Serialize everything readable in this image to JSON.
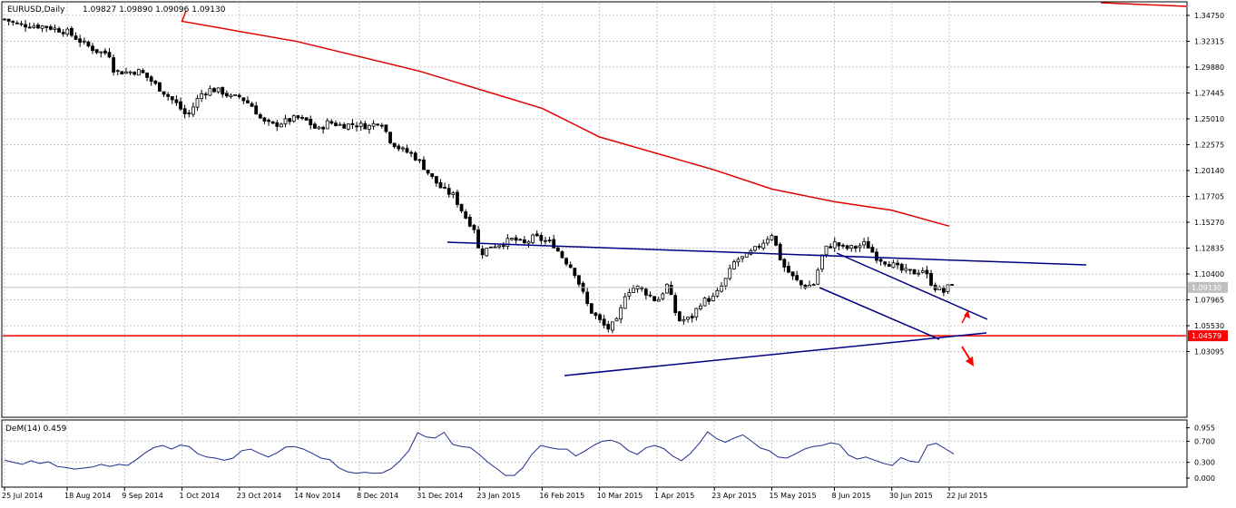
{
  "header": {
    "symbol": "EURUSD,Daily",
    "ohlc": "1.09827 1.09890 1.09096 1.09130"
  },
  "colors": {
    "background": "#ffffff",
    "grid": "#c8c8c8",
    "candle": "#000000",
    "ma": "#e00000",
    "trendline": "#000080",
    "support": "#ff0000",
    "arrow": "#ff0000",
    "dem": "#1c2c8c"
  },
  "price_axis": {
    "ticks": [
      "1.34750",
      "1.32315",
      "1.29880",
      "1.27445",
      "1.25010",
      "1.22575",
      "1.20140",
      "1.17705",
      "1.15270",
      "1.12835",
      "1.10400",
      "1.07965",
      "1.05530",
      "1.03095"
    ],
    "current_price": "1.09130",
    "support_label": "1.04579"
  },
  "time_axis": {
    "labels": [
      "25 Jul 2014",
      "18 Aug 2014",
      "9 Sep 2014",
      "1 Oct 2014",
      "23 Oct 2014",
      "14 Nov 2014",
      "8 Dec 2014",
      "31 Dec 2014",
      "23 Jan 2015",
      "16 Feb 2015",
      "10 Mar 2015",
      "1 Apr 2015",
      "23 Apr 2015",
      "15 May 2015",
      "8 Jun 2015",
      "30 Jun 2015",
      "22 Jul 2015"
    ]
  },
  "indicator": {
    "title": "DeM(14) 0.459",
    "ticks": [
      "0.955",
      "0.700",
      "0.300",
      "0.000"
    ]
  },
  "chart_data": {
    "type": "candlestick",
    "title": "EURUSD,Daily",
    "price_range": [
      1.01,
      1.35
    ],
    "close_path": [
      [
        "25 Jul 2014",
        1.344
      ],
      [
        "30 Jul 2014",
        1.339
      ],
      [
        "5 Aug 2014",
        1.338
      ],
      [
        "10 Aug 2014",
        1.337
      ],
      [
        "18 Aug 2014",
        1.332
      ],
      [
        "25 Aug 2014",
        1.32
      ],
      [
        "30 Aug 2014",
        1.313
      ],
      [
        "3 Sep 2014",
        1.312
      ],
      [
        "5 Sep 2014",
        1.295
      ],
      [
        "9 Sep 2014",
        1.294
      ],
      [
        "15 Sep 2014",
        1.295
      ],
      [
        "20 Sep 2014",
        1.284
      ],
      [
        "25 Sep 2014",
        1.273
      ],
      [
        "29 Sep 2014",
        1.264
      ],
      [
        "3 Oct 2014",
        1.252
      ],
      [
        "8 Oct 2014",
        1.273
      ],
      [
        "12 Oct 2014",
        1.278
      ],
      [
        "16 Oct 2014",
        1.276
      ],
      [
        "20 Oct 2014",
        1.27
      ],
      [
        "23 Oct 2014",
        1.271
      ],
      [
        "28 Oct 2014",
        1.262
      ],
      [
        "1 Nov 2014",
        1.247
      ],
      [
        "5 Nov 2014",
        1.244
      ],
      [
        "10 Nov 2014",
        1.248
      ],
      [
        "14 Nov 2014",
        1.251
      ],
      [
        "18 Nov 2014",
        1.248
      ],
      [
        "22 Nov 2014",
        1.239
      ],
      [
        "26 Nov 2014",
        1.247
      ],
      [
        "1 Dec 2014",
        1.244
      ],
      [
        "6 Dec 2014",
        1.245
      ],
      [
        "8 Dec 2014",
        1.244
      ],
      [
        "12 Dec 2014",
        1.243
      ],
      [
        "16 Dec 2014",
        1.249
      ],
      [
        "20 Dec 2014",
        1.229
      ],
      [
        "24 Dec 2014",
        1.221
      ],
      [
        "28 Dec 2014",
        1.217
      ],
      [
        "31 Dec 2014",
        1.21
      ],
      [
        "5 Jan 2015",
        1.194
      ],
      [
        "9 Jan 2015",
        1.183
      ],
      [
        "13 Jan 2015",
        1.178
      ],
      [
        "18 Jan 2015",
        1.156
      ],
      [
        "21 Jan 2015",
        1.147
      ],
      [
        "23 Jan 2015",
        1.122
      ],
      [
        "27 Jan 2015",
        1.13
      ],
      [
        "1 Feb 2015",
        1.133
      ],
      [
        "5 Feb 2015",
        1.137
      ],
      [
        "9 Feb 2015",
        1.132
      ],
      [
        "13 Feb 2015",
        1.139
      ],
      [
        "16 Feb 2015",
        1.136
      ],
      [
        "20 Feb 2015",
        1.133
      ],
      [
        "24 Feb 2015",
        1.119
      ],
      [
        "28 Feb 2015",
        1.108
      ],
      [
        "3 Mar 2015",
        1.09
      ],
      [
        "6 Mar 2015",
        1.071
      ],
      [
        "10 Mar 2015",
        1.06
      ],
      [
        "13 Mar 2015",
        1.052
      ],
      [
        "17 Mar 2015",
        1.06
      ],
      [
        "20 Mar 2015",
        1.087
      ],
      [
        "24 Mar 2015",
        1.092
      ],
      [
        "27 Mar 2015",
        1.088
      ],
      [
        "1 Apr 2015",
        1.078
      ],
      [
        "5 Apr 2015",
        1.094
      ],
      [
        "9 Apr 2015",
        1.06
      ],
      [
        "14 Apr 2015",
        1.062
      ],
      [
        "18 Apr 2015",
        1.078
      ],
      [
        "23 Apr 2015",
        1.082
      ],
      [
        "27 Apr 2015",
        1.097
      ],
      [
        "1 May 2015",
        1.117
      ],
      [
        "5 May 2015",
        1.12
      ],
      [
        "10 May 2015",
        1.13
      ],
      [
        "15 May 2015",
        1.142
      ],
      [
        "19 May 2015",
        1.113
      ],
      [
        "23 May 2015",
        1.101
      ],
      [
        "27 May 2015",
        1.092
      ],
      [
        "31 May 2015",
        1.094
      ],
      [
        "4 Jun 2015",
        1.127
      ],
      [
        "8 Jun 2015",
        1.133
      ],
      [
        "12 Jun 2015",
        1.128
      ],
      [
        "16 Jun 2015",
        1.129
      ],
      [
        "20 Jun 2015",
        1.133
      ],
      [
        "24 Jun 2015",
        1.12
      ],
      [
        "28 Jun 2015",
        1.115
      ],
      [
        "30 Jun 2015",
        1.113
      ],
      [
        "4 Jul 2015",
        1.107
      ],
      [
        "8 Jul 2015",
        1.105
      ],
      [
        "12 Jul 2015",
        1.108
      ],
      [
        "16 Jul 2015",
        1.092
      ],
      [
        "20 Jul 2015",
        1.087
      ],
      [
        "22 Jul 2015",
        1.093
      ],
      [
        "25 Jul 2015",
        1.1
      ],
      [
        "28 Jul 2015",
        1.096
      ],
      [
        "30 Jul 2015",
        1.0913
      ]
    ],
    "moving_average": [
      [
        "25 Jul 2014",
        1.352
      ],
      [
        "1 Oct 2014",
        1.342
      ],
      [
        "14 Nov 2014",
        1.323
      ],
      [
        "31 Dec 2014",
        1.295
      ],
      [
        "16 Feb 2015",
        1.26
      ],
      [
        "10 Mar 2015",
        1.233
      ],
      [
        "23 Apr 2015",
        1.202
      ],
      [
        "15 May 2015",
        1.184
      ],
      [
        "8 Jun 2015",
        1.172
      ],
      [
        "30 Jun 2015",
        1.164
      ],
      [
        "22 Jul 2015",
        1.149
      ]
    ],
    "support_level": 1.04579,
    "current_price": 1.0913,
    "trendlines": [
      {
        "name": "upper",
        "from": [
          "23 Jan 2015",
          1.153
        ],
        "to": [
          "30 Jul 2015",
          1.137
        ]
      },
      {
        "name": "lower",
        "from": [
          "10 Mar 2015",
          1.045
        ],
        "to": [
          "30 Jul 2015",
          1.081
        ]
      },
      {
        "name": "channel-top",
        "from": [
          "8 Jun 2015",
          1.148
        ],
        "to": [
          "30 Jul 2015",
          1.093
        ]
      },
      {
        "name": "channel-bottom",
        "from": [
          "8 Jun 2015",
          1.118
        ],
        "to": [
          "22 Jul 2015",
          1.075
        ]
      }
    ],
    "indicator": {
      "name": "DeM(14)",
      "last": 0.459,
      "range": [
        0,
        1
      ],
      "levels": [
        0.3,
        0.7
      ],
      "values": [
        0.34,
        0.3,
        0.26,
        0.33,
        0.28,
        0.31,
        0.22,
        0.2,
        0.17,
        0.19,
        0.21,
        0.26,
        0.22,
        0.26,
        0.24,
        0.35,
        0.48,
        0.58,
        0.62,
        0.55,
        0.63,
        0.6,
        0.46,
        0.4,
        0.38,
        0.34,
        0.38,
        0.52,
        0.55,
        0.47,
        0.4,
        0.48,
        0.59,
        0.6,
        0.55,
        0.47,
        0.38,
        0.35,
        0.2,
        0.12,
        0.09,
        0.11,
        0.09,
        0.1,
        0.18,
        0.33,
        0.52,
        0.86,
        0.78,
        0.76,
        0.87,
        0.64,
        0.6,
        0.58,
        0.45,
        0.3,
        0.18,
        0.05,
        0.05,
        0.2,
        0.45,
        0.62,
        0.58,
        0.55,
        0.55,
        0.42,
        0.51,
        0.62,
        0.7,
        0.72,
        0.66,
        0.52,
        0.45,
        0.58,
        0.62,
        0.56,
        0.42,
        0.33,
        0.46,
        0.65,
        0.88,
        0.75,
        0.68,
        0.76,
        0.82,
        0.7,
        0.57,
        0.52,
        0.4,
        0.38,
        0.46,
        0.55,
        0.6,
        0.62,
        0.67,
        0.64,
        0.44,
        0.36,
        0.4,
        0.34,
        0.28,
        0.24,
        0.39,
        0.32,
        0.3,
        0.62,
        0.66,
        0.56,
        0.459
      ]
    }
  }
}
